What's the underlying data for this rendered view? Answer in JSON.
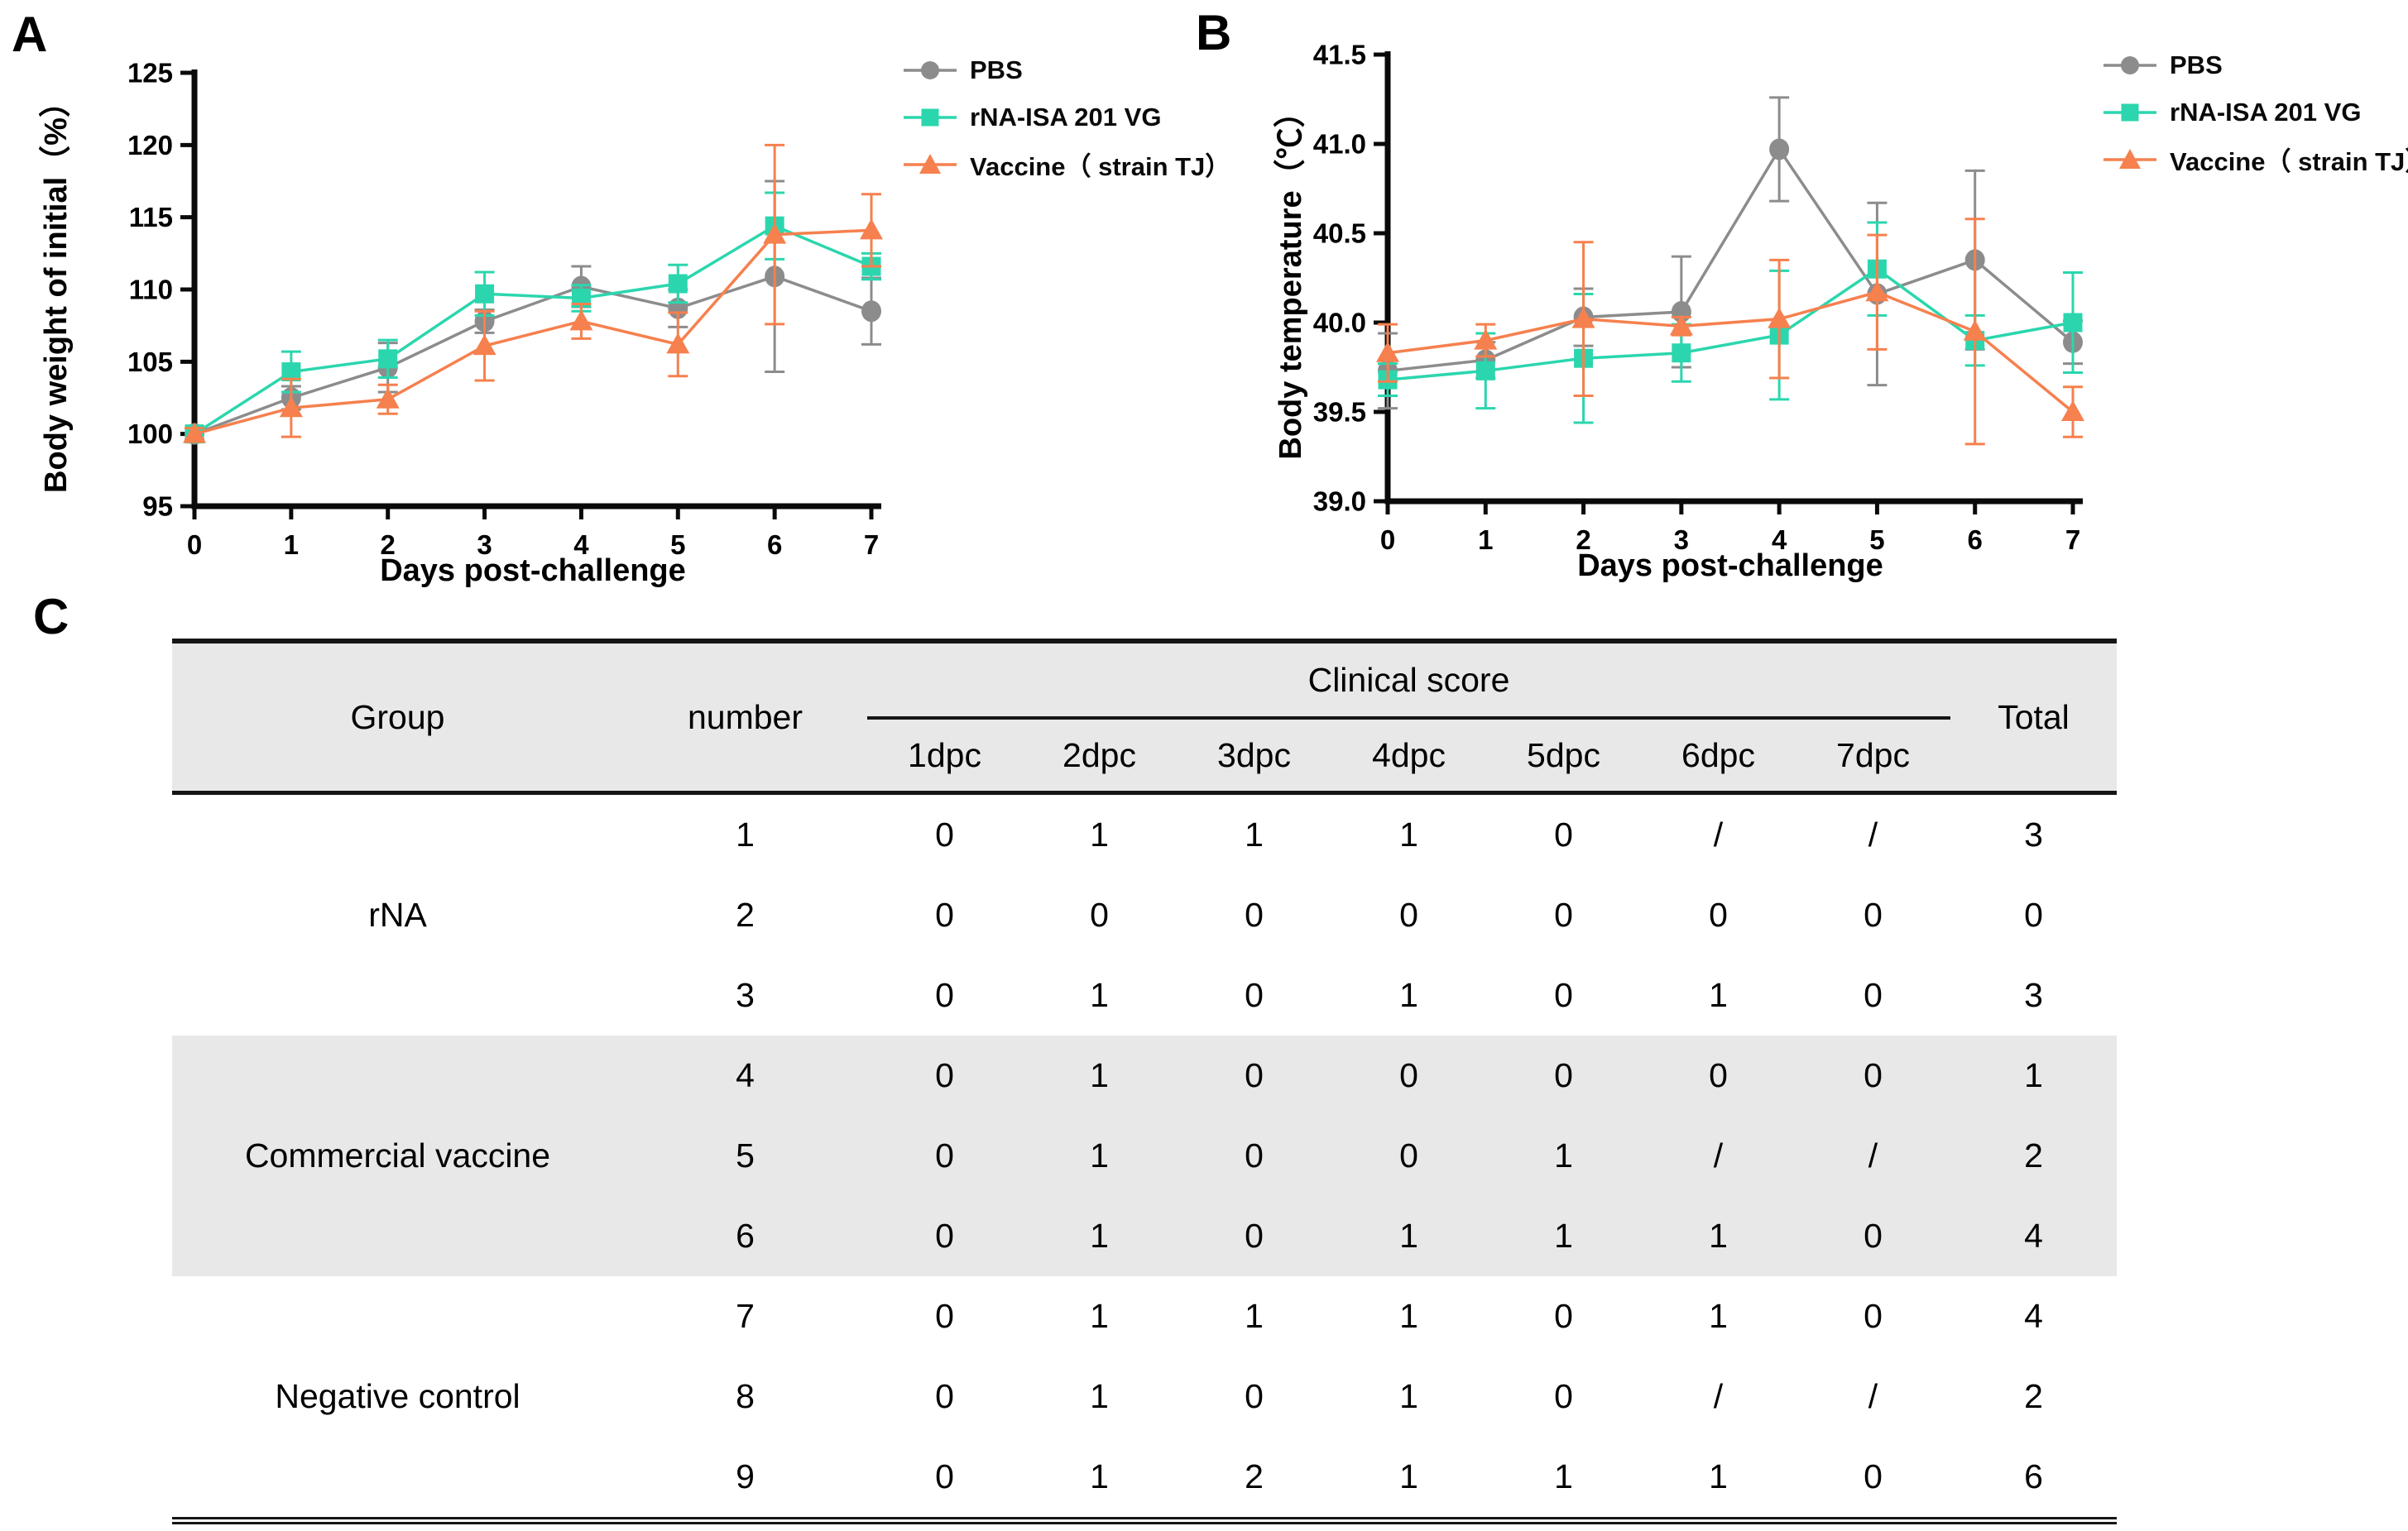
{
  "figure": {
    "panel_a_label": "A",
    "panel_b_label": "B",
    "panel_c_label": "C"
  },
  "colors": {
    "pbs": "#8C8C8C",
    "rna": "#2BD6AE",
    "vaccine": "#F6804E",
    "axis": "#0a0a0a",
    "table_shading": "#E8E8E8"
  },
  "legend": {
    "items": [
      {
        "label": "PBS",
        "marker": "circle",
        "color": "#8C8C8C"
      },
      {
        "label": "rNA-ISA 201 VG",
        "marker": "square",
        "color": "#2BD6AE"
      },
      {
        "label": "Vaccine（ strain TJ）",
        "marker": "triangle",
        "color": "#F6804E"
      }
    ]
  },
  "chart_data": [
    {
      "id": "A",
      "type": "line",
      "title": "",
      "xlabel": "Days post-challenge",
      "ylabel": "Body weight of initial（%）",
      "grid": false,
      "legend_position": "top-right",
      "x": [
        0,
        1,
        2,
        3,
        4,
        5,
        6,
        7
      ],
      "xtick_labels": [
        "0",
        "1",
        "2",
        "3",
        "4",
        "5",
        "6",
        "7"
      ],
      "xlim": [
        0,
        7
      ],
      "ylim": [
        95,
        125
      ],
      "yticks": [
        95,
        100,
        105,
        110,
        115,
        120,
        125
      ],
      "ytick_labels": [
        "95",
        "100",
        "105",
        "110",
        "115",
        "120",
        "125"
      ],
      "series": [
        {
          "name": "PBS",
          "marker": "circle",
          "color": "#8C8C8C",
          "values": [
            100,
            102.5,
            104.6,
            107.8,
            110.2,
            108.7,
            110.9,
            108.5
          ],
          "errors": [
            0.4,
            0.8,
            1.7,
            0.8,
            1.4,
            1.3,
            6.6,
            2.3
          ]
        },
        {
          "name": "rNA-ISA 201 VG",
          "marker": "square",
          "color": "#2BD6AE",
          "values": [
            100,
            104.3,
            105.2,
            109.7,
            109.4,
            110.4,
            114.4,
            111.6
          ],
          "errors": [
            0.4,
            1.4,
            1.3,
            1.5,
            0.9,
            1.3,
            2.3,
            0.9
          ]
        },
        {
          "name": "Vaccine（ strain TJ）",
          "marker": "triangle",
          "color": "#F6804E",
          "values": [
            100,
            101.8,
            102.4,
            106.1,
            107.8,
            106.2,
            113.8,
            114.1
          ],
          "errors": [
            0.4,
            2.0,
            1.0,
            2.4,
            1.2,
            2.2,
            6.2,
            2.5
          ]
        }
      ]
    },
    {
      "id": "B",
      "type": "line",
      "title": "",
      "xlabel": "Days post-challenge",
      "ylabel": "Body temperature（℃）",
      "grid": false,
      "legend_position": "top-right",
      "x": [
        0,
        1,
        2,
        3,
        4,
        5,
        6,
        7
      ],
      "xtick_labels": [
        "0",
        "1",
        "2",
        "3",
        "4",
        "5",
        "6",
        "7"
      ],
      "xlim": [
        0,
        7
      ],
      "ylim": [
        39.0,
        41.5
      ],
      "yticks": [
        39.0,
        39.5,
        40.0,
        40.5,
        41.0,
        41.5
      ],
      "ytick_labels": [
        "39.0",
        "39.5",
        "40.0",
        "40.5",
        "41.0",
        "41.5"
      ],
      "series": [
        {
          "name": "PBS",
          "marker": "circle",
          "color": "#8C8C8C",
          "values": [
            39.73,
            39.79,
            40.03,
            40.06,
            40.97,
            40.16,
            40.35,
            39.89
          ],
          "errors": [
            0.21,
            0.1,
            0.16,
            0.31,
            0.29,
            0.51,
            0.5,
            0.12
          ]
        },
        {
          "name": "rNA-ISA 201 VG",
          "marker": "square",
          "color": "#2BD6AE",
          "values": [
            39.68,
            39.73,
            39.8,
            39.83,
            39.93,
            40.3,
            39.9,
            40.0
          ],
          "errors": [
            0.09,
            0.21,
            0.36,
            0.16,
            0.36,
            0.26,
            0.14,
            0.28
          ]
        },
        {
          "name": "Vaccine（ strain TJ）",
          "marker": "triangle",
          "color": "#F6804E",
          "values": [
            39.83,
            39.9,
            40.02,
            39.98,
            40.02,
            40.17,
            39.95,
            39.5
          ],
          "errors": [
            0.16,
            0.09,
            0.43,
            0.05,
            0.33,
            0.32,
            0.63,
            0.14
          ]
        }
      ]
    }
  ],
  "table": {
    "header": {
      "group": "Group",
      "number": "number",
      "clinical": "Clinical score",
      "dpc": [
        "1dpc",
        "2dpc",
        "3dpc",
        "4dpc",
        "5dpc",
        "6dpc",
        "7dpc"
      ],
      "total": "Total"
    },
    "groups": [
      {
        "label": "rNA",
        "shaded": false,
        "row_start": 0,
        "row_count": 3
      },
      {
        "label": "Commercial vaccine",
        "shaded": true,
        "row_start": 3,
        "row_count": 3
      },
      {
        "label": "Negative control",
        "shaded": false,
        "row_start": 6,
        "row_count": 3
      }
    ],
    "rows": [
      {
        "number": "1",
        "scores": [
          "0",
          "1",
          "1",
          "1",
          "0",
          "/",
          "/"
        ],
        "total": "3"
      },
      {
        "number": "2",
        "scores": [
          "0",
          "0",
          "0",
          "0",
          "0",
          "0",
          "0"
        ],
        "total": "0"
      },
      {
        "number": "3",
        "scores": [
          "0",
          "1",
          "0",
          "1",
          "0",
          "1",
          "0"
        ],
        "total": "3"
      },
      {
        "number": "4",
        "scores": [
          "0",
          "1",
          "0",
          "0",
          "0",
          "0",
          "0"
        ],
        "total": "1"
      },
      {
        "number": "5",
        "scores": [
          "0",
          "1",
          "0",
          "0",
          "1",
          "/",
          "/"
        ],
        "total": "2"
      },
      {
        "number": "6",
        "scores": [
          "0",
          "1",
          "0",
          "1",
          "1",
          "1",
          "0"
        ],
        "total": "4"
      },
      {
        "number": "7",
        "scores": [
          "0",
          "1",
          "1",
          "1",
          "0",
          "1",
          "0"
        ],
        "total": "4"
      },
      {
        "number": "8",
        "scores": [
          "0",
          "1",
          "0",
          "1",
          "0",
          "/",
          "/"
        ],
        "total": "2"
      },
      {
        "number": "9",
        "scores": [
          "0",
          "1",
          "2",
          "1",
          "1",
          "1",
          "0"
        ],
        "total": "6"
      }
    ]
  }
}
